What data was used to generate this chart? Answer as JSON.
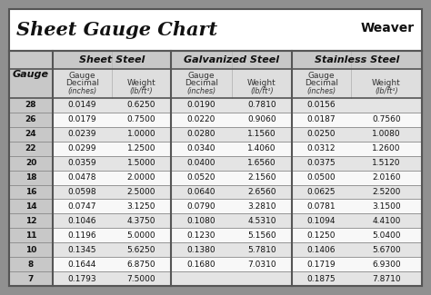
{
  "title": "Sheet Gauge Chart",
  "bg_outer": "#909090",
  "bg_inner": "#f5f5f5",
  "bg_white": "#ffffff",
  "bg_header_gray": "#c8c8c8",
  "bg_row_light": "#e4e4e4",
  "bg_row_white": "#f8f8f8",
  "text_dark": "#111111",
  "line_dark": "#555555",
  "line_mid": "#888888",
  "line_light": "#bbbbbb",
  "gauges": [
    28,
    26,
    24,
    22,
    20,
    18,
    16,
    14,
    12,
    11,
    10,
    8,
    7
  ],
  "sheet_steel_dec": [
    "0.0149",
    "0.0179",
    "0.0239",
    "0.0299",
    "0.0359",
    "0.0478",
    "0.0598",
    "0.0747",
    "0.1046",
    "0.1196",
    "0.1345",
    "0.1644",
    "0.1793"
  ],
  "sheet_steel_wt": [
    "0.6250",
    "0.7500",
    "1.0000",
    "1.2500",
    "1.5000",
    "2.0000",
    "2.5000",
    "3.1250",
    "4.3750",
    "5.0000",
    "5.6250",
    "6.8750",
    "7.5000"
  ],
  "galv_dec": [
    "0.0190",
    "0.0220",
    "0.0280",
    "0.0340",
    "0.0400",
    "0.0520",
    "0.0640",
    "0.0790",
    "0.1080",
    "0.1230",
    "0.1380",
    "0.1680",
    ""
  ],
  "galv_wt": [
    "0.7810",
    "0.9060",
    "1.1560",
    "1.4060",
    "1.6560",
    "2.1560",
    "2.6560",
    "3.2810",
    "4.5310",
    "5.1560",
    "5.7810",
    "7.0310",
    ""
  ],
  "stain_dec": [
    "0.0156",
    "0.0187",
    "0.0250",
    "0.0312",
    "0.0375",
    "0.0500",
    "0.0625",
    "0.0781",
    "0.1094",
    "0.1250",
    "0.1406",
    "0.1719",
    "0.1875"
  ],
  "stain_wt": [
    "",
    "0.7560",
    "1.0080",
    "1.2600",
    "1.5120",
    "2.0160",
    "2.5200",
    "3.1500",
    "4.4100",
    "5.0400",
    "5.6700",
    "6.9300",
    "7.8710"
  ]
}
